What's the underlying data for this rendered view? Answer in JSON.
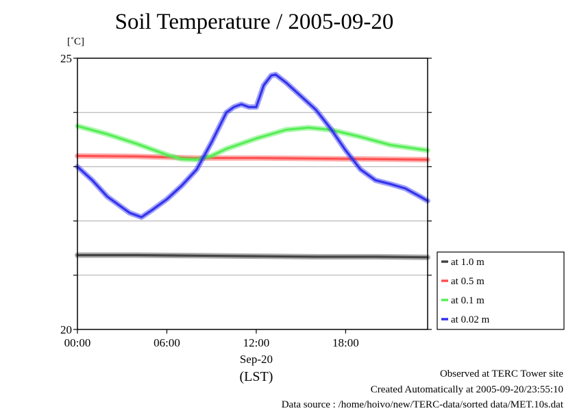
{
  "chart_data": {
    "type": "line",
    "title": "Soil Temperature / 2005-09-20",
    "ylabel": "[˚C]",
    "xlabel": "Sep-20",
    "xlabel2": "(LST)",
    "ylim": [
      20,
      25
    ],
    "yticks": [
      20,
      25
    ],
    "ygrid": [
      21,
      22,
      23,
      24
    ],
    "xlim": [
      0,
      23.5
    ],
    "xticks": [
      0,
      6,
      12,
      18
    ],
    "xtick_labels": [
      "00:00",
      "06:00",
      "12:00",
      "18:00"
    ],
    "grid": true,
    "legend_position": "right",
    "series": [
      {
        "name": "at 1.0 m",
        "color": "#444444",
        "x": [
          0,
          4,
          8,
          12,
          16,
          20,
          23.5
        ],
        "y": [
          21.37,
          21.37,
          21.36,
          21.35,
          21.34,
          21.34,
          21.33
        ]
      },
      {
        "name": "at 0.5 m",
        "color": "#ff5050",
        "x": [
          0,
          4,
          8,
          12,
          16,
          20,
          23.5
        ],
        "y": [
          23.2,
          23.19,
          23.16,
          23.16,
          23.15,
          23.14,
          23.13
        ]
      },
      {
        "name": "at 0.1 m",
        "color": "#55ee55",
        "x": [
          0,
          2,
          4,
          6,
          7,
          8,
          9,
          10,
          12,
          14,
          15.5,
          17,
          19,
          21,
          23.5
        ],
        "y": [
          23.75,
          23.6,
          23.42,
          23.22,
          23.14,
          23.13,
          23.2,
          23.33,
          23.52,
          23.68,
          23.72,
          23.68,
          23.55,
          23.4,
          23.3
        ]
      },
      {
        "name": "at 0.02 m",
        "color": "#3333ee",
        "x": [
          0,
          1,
          2,
          3,
          3.5,
          4,
          4.3,
          5,
          6,
          7,
          8,
          9,
          10,
          10.5,
          11,
          11.5,
          12,
          12.5,
          13,
          13.3,
          14,
          15,
          16,
          17,
          18,
          19,
          20,
          21,
          22,
          23,
          23.5
        ],
        "y": [
          23.0,
          22.75,
          22.45,
          22.25,
          22.15,
          22.1,
          22.07,
          22.2,
          22.4,
          22.65,
          22.95,
          23.45,
          24.0,
          24.1,
          24.15,
          24.1,
          24.1,
          24.5,
          24.68,
          24.7,
          24.55,
          24.3,
          24.05,
          23.7,
          23.3,
          22.95,
          22.75,
          22.68,
          22.6,
          22.45,
          22.37
        ]
      }
    ]
  },
  "footer": {
    "line1": "Observed at TERC Tower site",
    "line2": "Created Automatically at 2005-09-20/23:55:10",
    "line3": "Data source : /home/hoivo/new/TERC-data/sorted  data/MET.10s.dat"
  }
}
